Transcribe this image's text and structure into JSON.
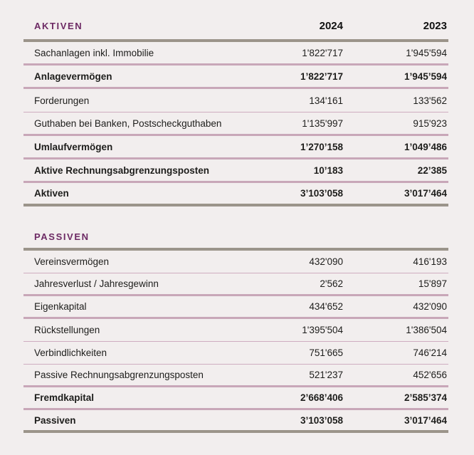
{
  "page": {
    "background": "#f2eeee",
    "accent_purple": "#6d2a64",
    "gray_line_color": "#9b948a",
    "thick_separator_color": "#c8a7b8",
    "thin_separator_color": "#cfadc0",
    "text_color": "#1d1d1b"
  },
  "columns": {
    "year_2024": "2024",
    "year_2023": "2023"
  },
  "aktiven": {
    "title": "AKTIVEN",
    "rows": [
      {
        "label": "Sachanlagen inkl. Immobilie",
        "v2024": "1'822'717",
        "v2023": "1'945'594"
      },
      {
        "label": "Anlagevermögen",
        "v2024": "1’822’717",
        "v2023": "1’945’594"
      },
      {
        "label": "Forderungen",
        "v2024": "134'161",
        "v2023": "133'562"
      },
      {
        "label": "Guthaben bei Banken, Postscheckguthaben",
        "v2024": "1'135'997",
        "v2023": "915'923"
      },
      {
        "label": "Umlaufvermögen",
        "v2024": "1’270’158",
        "v2023": "1’049’486"
      },
      {
        "label": "Aktive Rechnungsabgrenzungsposten",
        "v2024": "10’183",
        "v2023": "22’385"
      },
      {
        "label": "Aktiven",
        "v2024": "3’103’058",
        "v2023": "3’017’464"
      }
    ]
  },
  "passiven": {
    "title": "PASSIVEN",
    "rows": [
      {
        "label": "Vereinsvermögen",
        "v2024": "432'090",
        "v2023": "416'193"
      },
      {
        "label": "Jahresverlust / Jahresgewinn",
        "v2024": "2'562",
        "v2023": "15'897"
      },
      {
        "label": "Eigenkapital",
        "v2024": "434'652",
        "v2023": "432'090"
      },
      {
        "label": "Rückstellungen",
        "v2024": "1'395'504",
        "v2023": "1'386'504"
      },
      {
        "label": "Verbindlichkeiten",
        "v2024": "751'665",
        "v2023": "746'214"
      },
      {
        "label": "Passive Rechnungsabgrenzungsposten",
        "v2024": "521'237",
        "v2023": "452'656"
      },
      {
        "label": "Fremdkapital",
        "v2024": "2’668’406",
        "v2023": "2’585’374"
      },
      {
        "label": "Passiven",
        "v2024": "3’103’058",
        "v2023": "3’017’464"
      }
    ]
  }
}
